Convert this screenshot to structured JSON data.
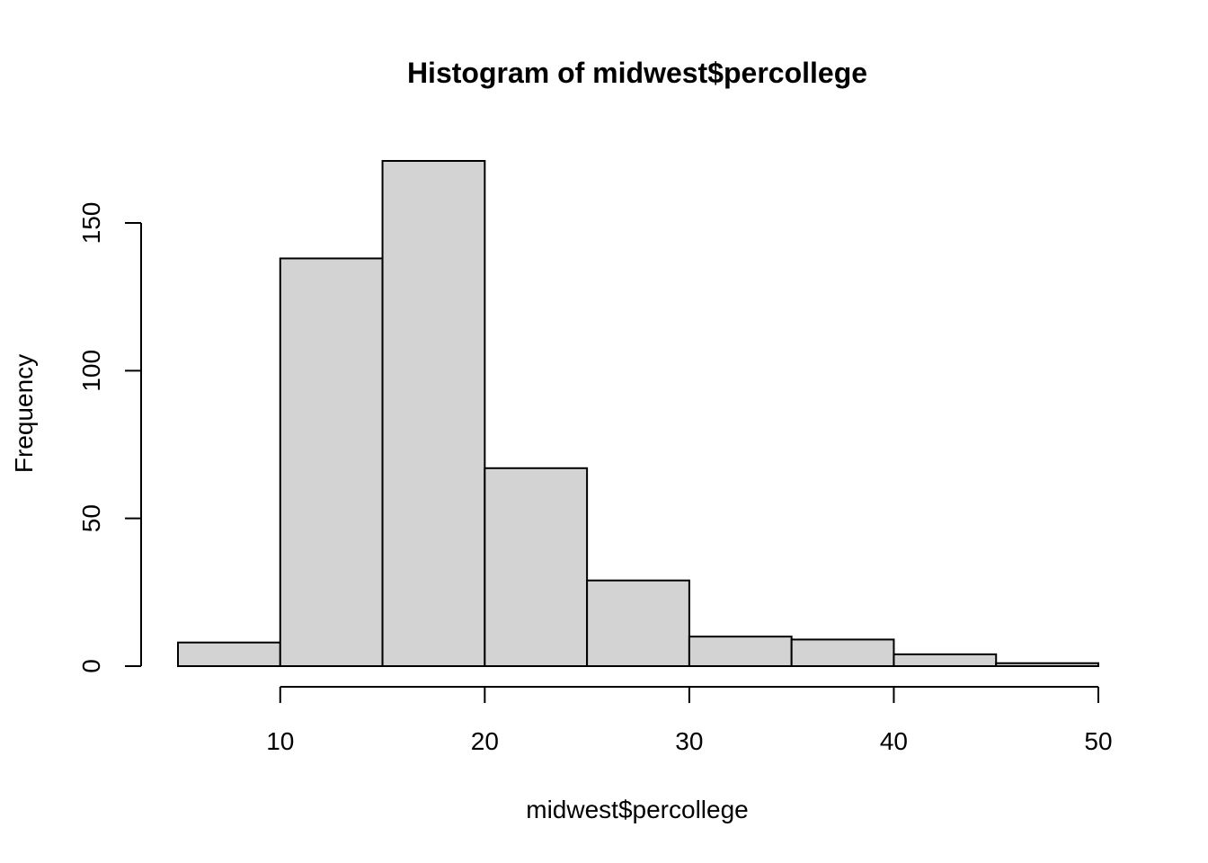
{
  "chart_data": {
    "type": "bar",
    "subtype": "histogram",
    "title": "Histogram of midwest$percollege",
    "xlabel": "midwest$percollege",
    "ylabel": "Frequency",
    "bins": [
      {
        "start": 5,
        "end": 10,
        "count": 8
      },
      {
        "start": 10,
        "end": 15,
        "count": 138
      },
      {
        "start": 15,
        "end": 20,
        "count": 171
      },
      {
        "start": 20,
        "end": 25,
        "count": 67
      },
      {
        "start": 25,
        "end": 30,
        "count": 29
      },
      {
        "start": 30,
        "end": 35,
        "count": 10
      },
      {
        "start": 35,
        "end": 40,
        "count": 9
      },
      {
        "start": 40,
        "end": 45,
        "count": 4
      },
      {
        "start": 45,
        "end": 50,
        "count": 1
      }
    ],
    "xticks": [
      10,
      20,
      30,
      40,
      50
    ],
    "yticks": [
      0,
      50,
      100,
      150
    ],
    "xlim": [
      5,
      50
    ],
    "ylim": [
      0,
      171
    ],
    "bar_fill": "#d3d3d3",
    "bar_stroke": "#000000",
    "grid": false,
    "legend": "none"
  }
}
